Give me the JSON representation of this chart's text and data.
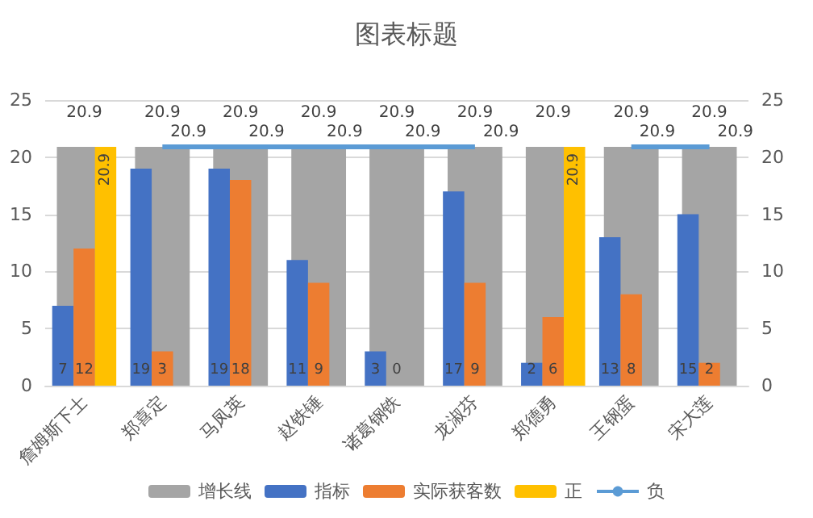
{
  "chart_data": {
    "type": "bar",
    "title": "图表标题",
    "categories": [
      "詹姆斯下士",
      "郑喜定",
      "马凤英",
      "赵铁锤",
      "诸葛钢铁",
      "龙淑芬",
      "郑德勇",
      "王钢蛋",
      "宋大莲"
    ],
    "series": [
      {
        "name": "增长线",
        "axis": "y2",
        "color": "#a5a5a5",
        "values": [
          20.9,
          20.9,
          20.9,
          20.9,
          20.9,
          20.9,
          20.9,
          20.9,
          20.9
        ]
      },
      {
        "name": "指标",
        "color": "#4472c4",
        "values": [
          7,
          19,
          19,
          11,
          3,
          17,
          2,
          13,
          15
        ]
      },
      {
        "name": "实际获客数",
        "color": "#ed7d31",
        "values": [
          12,
          3,
          18,
          9,
          0,
          9,
          6,
          8,
          2
        ]
      },
      {
        "name": "正",
        "color": "#ffc000",
        "values": [
          20.9,
          null,
          null,
          null,
          null,
          null,
          20.9,
          null,
          null
        ]
      },
      {
        "name": "负",
        "type": "line",
        "axis": "y2",
        "color": "#5b9bd5",
        "values": [
          null,
          20.9,
          20.9,
          20.9,
          20.9,
          20.9,
          null,
          20.9,
          20.9
        ]
      }
    ],
    "ylim": [
      0,
      25
    ],
    "yticks": [
      0,
      5,
      10,
      15,
      20,
      25
    ],
    "y2lim": [
      0,
      25
    ],
    "y2ticks": [
      0,
      5,
      10,
      15,
      20,
      25
    ],
    "data_labels": true,
    "grid": "y",
    "legend": "bottom",
    "marker": "none"
  }
}
